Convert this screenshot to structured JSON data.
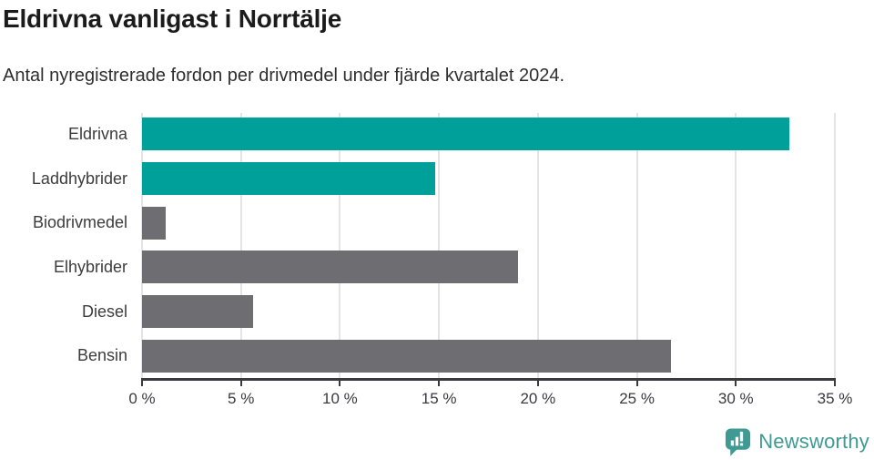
{
  "title": "Eldrivna vanligast i Norrtälje",
  "subtitle": "Antal nyregistrerade fordon per drivmedel under fjärde kvartalet 2024.",
  "branding": {
    "logo_text": "Newsworthy"
  },
  "colors": {
    "highlight_bar": "#00A09A",
    "default_bar": "#6D6D72",
    "axis": "#3A3A3E",
    "gridline": "#E4E4E6",
    "title_text": "#1B1B1B",
    "body_text": "#2E2E2E",
    "logo": "#3E9A92"
  },
  "chart_data": {
    "type": "bar",
    "orientation": "horizontal",
    "title": "Eldrivna vanligast i Norrtälje",
    "subtitle": "Antal nyregistrerade fordon per drivmedel under fjärde kvartalet 2024.",
    "categories": [
      "Eldrivna",
      "Laddhybrider",
      "Biodrivmedel",
      "Elhybrider",
      "Diesel",
      "Bensin"
    ],
    "values": [
      32.7,
      14.8,
      1.2,
      19.0,
      5.6,
      26.7
    ],
    "unit": "%",
    "bar_colors": [
      "#00A09A",
      "#00A09A",
      "#6D6D72",
      "#6D6D72",
      "#6D6D72",
      "#6D6D72"
    ],
    "xlim": [
      0,
      35
    ],
    "xticks": [
      {
        "value": 0,
        "label": "0 %"
      },
      {
        "value": 5,
        "label": "5 %"
      },
      {
        "value": 10,
        "label": "10 %"
      },
      {
        "value": 15,
        "label": "15 %"
      },
      {
        "value": 20,
        "label": "20 %"
      },
      {
        "value": 25,
        "label": "25 %"
      },
      {
        "value": 30,
        "label": "30 %"
      },
      {
        "value": 35,
        "label": "35 %"
      }
    ],
    "grid": true,
    "legend": false
  }
}
